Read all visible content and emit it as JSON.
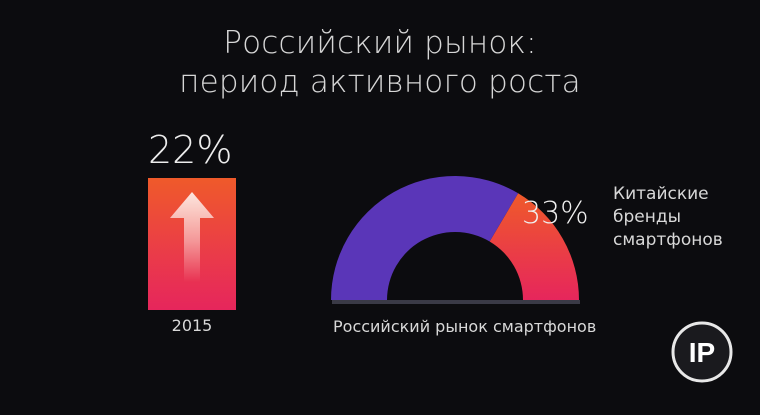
{
  "title": {
    "line1": "Российский рынок:",
    "line2": "период активного роста"
  },
  "chart_data": [
    {
      "type": "bar",
      "categories": [
        "2015"
      ],
      "values": [
        22
      ],
      "data_labels": [
        "22%"
      ],
      "unit": "%",
      "icon": "up-arrow-icon"
    },
    {
      "type": "pie",
      "variant": "half-donut",
      "caption": "Российский рынок смартфонов",
      "slices": [
        {
          "label": "Китайские бренды смартфонов",
          "label_lines": [
            "Китайские",
            "бренды",
            "смартфонов"
          ],
          "value": 33,
          "data_label": "33%",
          "color": "#e84a3c"
        },
        {
          "label": "",
          "value": 67,
          "color": "#5a36b8"
        }
      ]
    }
  ],
  "colors": {
    "purple": "#5a36b8",
    "orange": "#ef5a2a",
    "pink": "#e6265c",
    "background": "#0c0c0f"
  },
  "logo": {
    "text": "IP"
  }
}
